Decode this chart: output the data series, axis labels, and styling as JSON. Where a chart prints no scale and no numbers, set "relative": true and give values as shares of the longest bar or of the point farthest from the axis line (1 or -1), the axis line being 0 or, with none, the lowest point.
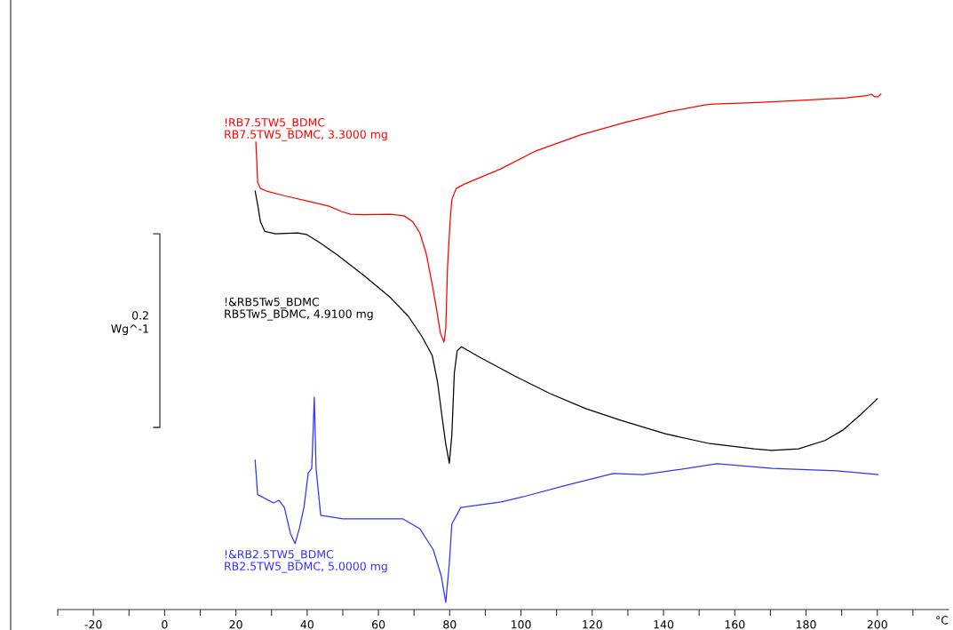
{
  "chart_data": {
    "type": "line",
    "relative": true,
    "xlabel": "°C",
    "xlim": [
      -30,
      220
    ],
    "xticks": [
      {
        "value": -30,
        "label": null
      },
      -20,
      {
        "value": -10,
        "label": null
      },
      0,
      {
        "value": 10,
        "label": null
      },
      20,
      {
        "value": 30,
        "label": null
      },
      40,
      {
        "value": 50,
        "label": null
      },
      60,
      {
        "value": 70,
        "label": null
      },
      80,
      {
        "value": 90,
        "label": null
      },
      100,
      {
        "value": 110,
        "label": null
      },
      120,
      {
        "value": 130,
        "label": null
      },
      140,
      {
        "value": 150,
        "label": null
      },
      160,
      {
        "value": 170,
        "label": null
      },
      180,
      {
        "value": 190,
        "label": null
      },
      200,
      {
        "value": 210,
        "label": null
      }
    ],
    "annotations": [
      "0.2",
      "Wg^-1"
    ],
    "grid": false,
    "legend": false,
    "marker": "none",
    "line_style": "solid",
    "series": [
      {
        "name": "!RB7.5TW5_BDMC\nRB7.5TW5_BDMC, 3.3000 mg",
        "color": "#ff0000",
        "x": [
          25.6,
          25.9,
          26.1,
          26.9,
          28.6,
          33.6,
          41.0,
          46.0,
          49.8,
          52.2,
          55.97,
          63.4,
          67.2,
          69.7,
          71.6,
          73.4,
          75.1,
          76.4,
          77.4,
          78.4,
          78.9,
          79.4,
          80.1,
          80.6,
          81.8,
          84.3,
          94.3,
          104.2,
          116.7,
          129.1,
          141.5,
          151.5,
          154.0,
          166.4,
          178.9,
          191.3,
          197.0,
          198.3,
          199.3,
          200.2,
          201.0
        ],
        "values": [
          0.907,
          0.864,
          0.829,
          0.817,
          0.812,
          0.803,
          0.791,
          0.783,
          0.772,
          0.767,
          0.766,
          0.767,
          0.764,
          0.752,
          0.731,
          0.691,
          0.631,
          0.579,
          0.536,
          0.519,
          0.545,
          0.666,
          0.752,
          0.795,
          0.817,
          0.826,
          0.855,
          0.89,
          0.921,
          0.945,
          0.966,
          0.979,
          0.981,
          0.984,
          0.988,
          0.993,
          0.997,
          1.0,
          0.995,
          0.995,
          1.0
        ]
      },
      {
        "name": "!&RB5Tw5_BDMC\nRB5Tw5_BDMC, 4.9100 mg",
        "color": "#000000",
        "x": [
          25.4,
          26.1,
          26.9,
          28.1,
          31.1,
          37.3,
          39.8,
          43.5,
          48.5,
          56.0,
          63.4,
          68.4,
          72.1,
          75.1,
          76.6,
          77.9,
          78.9,
          79.9,
          80.6,
          81.3,
          82.1,
          83.3,
          88.3,
          98.3,
          108.2,
          118.2,
          128.1,
          140.5,
          153.0,
          165.4,
          170.4,
          177.9,
          185.3,
          190.3,
          195.3,
          200.0
        ],
        "values": [
          0.812,
          0.786,
          0.752,
          0.734,
          0.729,
          0.731,
          0.728,
          0.712,
          0.688,
          0.648,
          0.605,
          0.569,
          0.531,
          0.493,
          0.441,
          0.372,
          0.321,
          0.284,
          0.338,
          0.459,
          0.502,
          0.51,
          0.49,
          0.453,
          0.419,
          0.39,
          0.367,
          0.341,
          0.322,
          0.312,
          0.309,
          0.312,
          0.328,
          0.348,
          0.378,
          0.409
        ]
      },
      {
        "name": "!&RB2.5TW5_BDMC\nRB2.5TW5_BDMC, 5.0000 mg",
        "color": "#3333ff",
        "x": [
          25.4,
          26.1,
          30.6,
          32.1,
          33.6,
          35.3,
          36.6,
          37.8,
          39.1,
          40.3,
          41.3,
          42.0,
          42.5,
          43.8,
          50.0,
          66.9,
          71.6,
          75.4,
          77.6,
          78.9,
          79.9,
          80.6,
          83.1,
          94.5,
          100.7,
          112.7,
          125.9,
          134.3,
          141.8,
          155.0,
          170.6,
          188.7,
          200.2
        ],
        "values": [
          0.29,
          0.223,
          0.207,
          0.212,
          0.198,
          0.148,
          0.128,
          0.157,
          0.198,
          0.265,
          0.274,
          0.412,
          0.274,
          0.183,
          0.176,
          0.176,
          0.157,
          0.116,
          0.066,
          0.014,
          0.09,
          0.166,
          0.198,
          0.209,
          0.219,
          0.241,
          0.264,
          0.262,
          0.269,
          0.283,
          0.274,
          0.269,
          0.262
        ]
      }
    ]
  }
}
